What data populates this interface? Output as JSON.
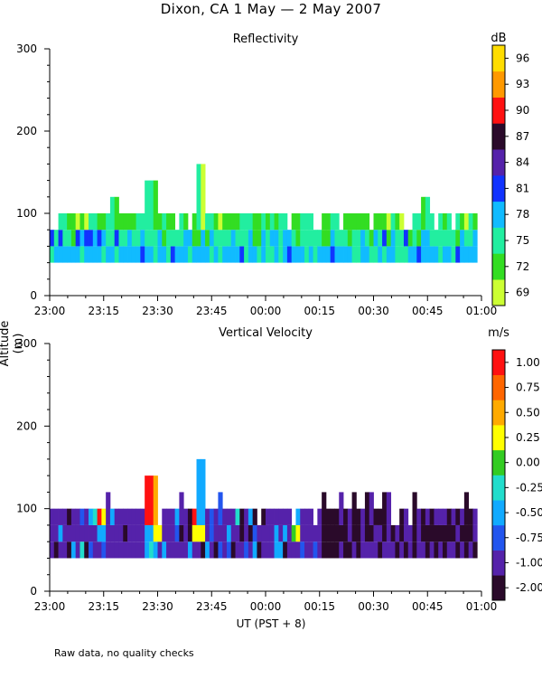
{
  "title": "Dixon, CA  1 May —  2 May 2007",
  "ylabel": "Altitude (m)",
  "xlabel": "UT  (PST + 8)",
  "footnote": "Raw data, no quality checks",
  "chart_data": [
    {
      "type": "heatmap",
      "title": "Reflectivity",
      "colorbar_unit": "dB",
      "colorbar_ticks": [
        "69",
        "72",
        "75",
        "78",
        "81",
        "84",
        "87",
        "90",
        "93",
        "96"
      ],
      "colorbar_colors": [
        "#ccff33",
        "#33dd22",
        "#22eea0",
        "#11bbff",
        "#1133ff",
        "#5522aa",
        "#2a0a2a",
        "#ff1111",
        "#ff9900",
        "#ffdd00"
      ],
      "ylim": [
        0,
        300
      ],
      "yticks": [
        "0",
        "100",
        "200",
        "300"
      ],
      "xticks": [
        "23:00",
        "23:15",
        "23:30",
        "23:45",
        "00:00",
        "00:15",
        "00:30",
        "00:45",
        "01:00"
      ],
      "data_bottom_m": 40,
      "data_top_m": 100,
      "occasional_top_m": 120,
      "spike_top_m": 160,
      "spike_time": "23:41"
    },
    {
      "type": "heatmap",
      "title": "Vertical Velocity",
      "colorbar_unit": "m/s",
      "colorbar_ticks": [
        "-2.00",
        "-1.00",
        "-0.75",
        "-0.50",
        "-0.25",
        "0.00",
        "0.25",
        "0.50",
        "0.75",
        "1.00"
      ],
      "colorbar_colors": [
        "#2a0a2a",
        "#5522aa",
        "#2255ee",
        "#11aaff",
        "#22ddcc",
        "#33cc22",
        "#ffff00",
        "#ffaa00",
        "#ff6600",
        "#ff1111"
      ],
      "ylim": [
        0,
        300
      ],
      "yticks": [
        "0",
        "100",
        "200",
        "300"
      ],
      "xticks": [
        "23:00",
        "23:15",
        "23:30",
        "23:45",
        "00:00",
        "00:15",
        "00:30",
        "00:45",
        "01:00"
      ],
      "data_bottom_m": 40,
      "data_top_m": 100,
      "occasional_top_m": 120,
      "spike_top_m": 160,
      "spike_time": "23:41"
    }
  ]
}
